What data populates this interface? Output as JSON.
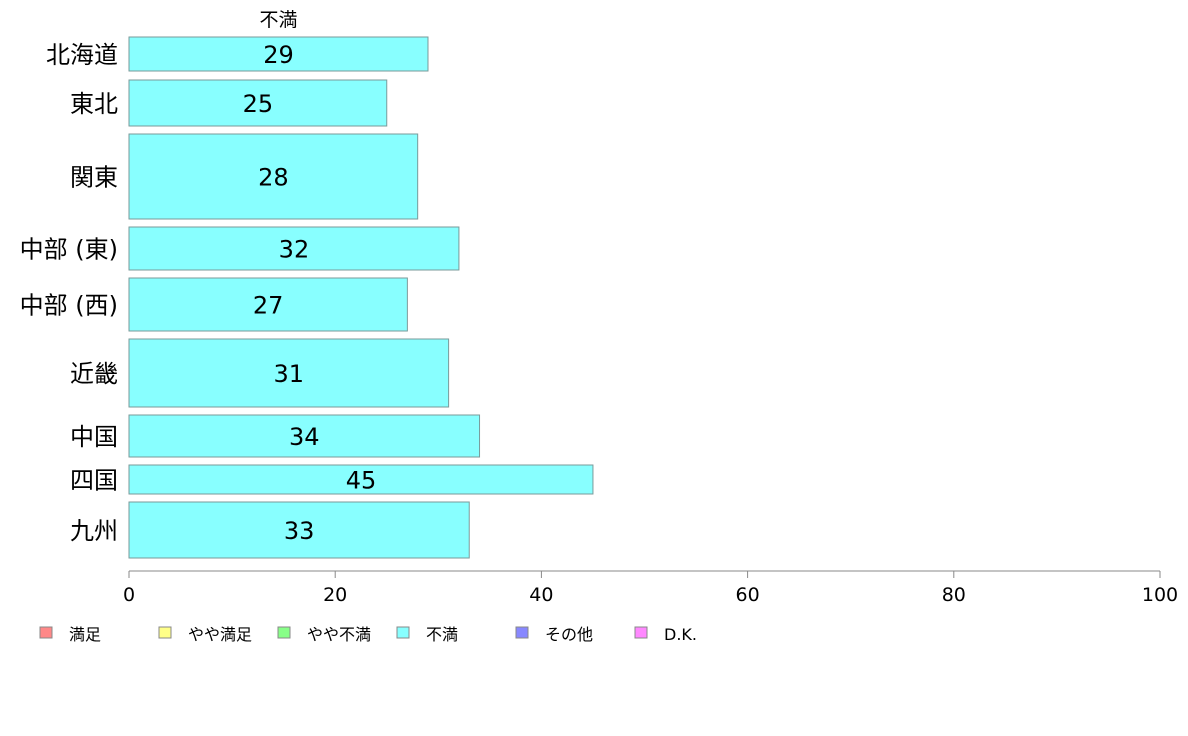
{
  "chart_data": {
    "type": "bar",
    "orientation": "horizontal",
    "series_header": "不満",
    "categories": [
      "北海道",
      "東北",
      "関東",
      "中部 (東)",
      "中部 (西)",
      "近畿",
      "中国",
      "四国",
      "九州"
    ],
    "series": [
      {
        "name": "不満",
        "color": "#88ffff",
        "values": [
          29,
          25,
          28,
          32,
          27,
          31,
          34,
          45,
          33
        ]
      }
    ],
    "xlim": [
      0,
      100
    ],
    "xticks": [
      0,
      20,
      40,
      60,
      80,
      100
    ],
    "grid": false,
    "legend": {
      "placement": "bottom-left",
      "entries": [
        {
          "label": "満足",
          "color": "#ff8888"
        },
        {
          "label": "やや満足",
          "color": "#ffff88"
        },
        {
          "label": "やや不満",
          "color": "#88ff88"
        },
        {
          "label": "不満",
          "color": "#88ffff"
        },
        {
          "label": "その他",
          "color": "#8888ff"
        },
        {
          "label": "D.K.",
          "color": "#ff88ff"
        }
      ]
    }
  }
}
